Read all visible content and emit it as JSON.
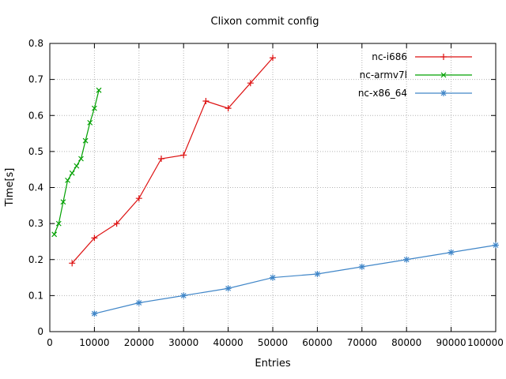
{
  "chart_data": {
    "type": "line",
    "title": "Clixon commit config",
    "xlabel": "Entries",
    "ylabel": "Time[s]",
    "xlim": [
      0,
      100000
    ],
    "ylim": [
      0,
      0.8
    ],
    "grid": true,
    "legend_position": "top-right-inside",
    "xticks": {
      "values": [
        0,
        10000,
        20000,
        30000,
        40000,
        50000,
        60000,
        70000,
        80000,
        90000,
        100000
      ],
      "labels": [
        "0",
        "10000",
        "20000",
        "30000",
        "40000",
        "50000",
        "60000",
        "70000",
        "80000",
        "90000",
        "100000"
      ]
    },
    "yticks": {
      "values": [
        0,
        0.1,
        0.2,
        0.3,
        0.4,
        0.5,
        0.6,
        0.7,
        0.8
      ],
      "labels": [
        "0",
        "0.1",
        "0.2",
        "0.3",
        "0.4",
        "0.5",
        "0.6",
        "0.7",
        "0.8"
      ]
    },
    "series": [
      {
        "name": "nc-i686",
        "color": "#dd1111",
        "marker": "plus",
        "x": [
          5000,
          10000,
          15000,
          20000,
          25000,
          30000,
          35000,
          40000,
          45000,
          50000
        ],
        "y": [
          0.19,
          0.26,
          0.3,
          0.37,
          0.48,
          0.49,
          0.64,
          0.62,
          0.69,
          0.76
        ]
      },
      {
        "name": "nc-armv7l",
        "color": "#00a000",
        "marker": "cross",
        "x": [
          1000,
          2000,
          3000,
          4000,
          5000,
          6000,
          7000,
          8000,
          9000,
          10000,
          11000
        ],
        "y": [
          0.27,
          0.3,
          0.36,
          0.42,
          0.44,
          0.46,
          0.48,
          0.53,
          0.58,
          0.62,
          0.67
        ]
      },
      {
        "name": "nc-x86_64",
        "color": "#4086c8",
        "marker": "asterisk",
        "x": [
          10000,
          20000,
          30000,
          40000,
          50000,
          60000,
          70000,
          80000,
          90000,
          100000
        ],
        "y": [
          0.05,
          0.08,
          0.1,
          0.12,
          0.15,
          0.16,
          0.18,
          0.2,
          0.22,
          0.24
        ]
      }
    ]
  }
}
